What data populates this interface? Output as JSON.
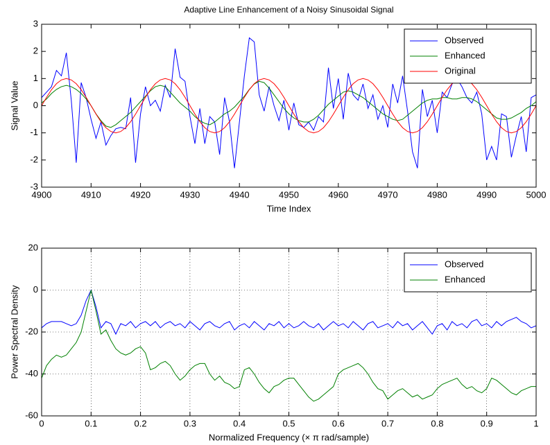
{
  "chart_data": [
    {
      "type": "line",
      "title": "Adaptive Line Enhancement of a Noisy Sinusoidal Signal",
      "xlabel": "Time Index",
      "ylabel": "Signal Value",
      "x": [
        4900,
        4901,
        4902,
        4903,
        4904,
        4905,
        4906,
        4907,
        4908,
        4909,
        4910,
        4911,
        4912,
        4913,
        4914,
        4915,
        4916,
        4917,
        4918,
        4919,
        4920,
        4921,
        4922,
        4923,
        4924,
        4925,
        4926,
        4927,
        4928,
        4929,
        4930,
        4931,
        4932,
        4933,
        4934,
        4935,
        4936,
        4937,
        4938,
        4939,
        4940,
        4941,
        4942,
        4943,
        4944,
        4945,
        4946,
        4947,
        4948,
        4949,
        4950,
        4951,
        4952,
        4953,
        4954,
        4955,
        4956,
        4957,
        4958,
        4959,
        4960,
        4961,
        4962,
        4963,
        4964,
        4965,
        4966,
        4967,
        4968,
        4969,
        4970,
        4971,
        4972,
        4973,
        4974,
        4975,
        4976,
        4977,
        4978,
        4979,
        4980,
        4981,
        4982,
        4983,
        4984,
        4985,
        4986,
        4987,
        4988,
        4989,
        4990,
        4991,
        4992,
        4993,
        4994,
        4995,
        4996,
        4997,
        4998,
        4999,
        5000
      ],
      "series": [
        {
          "name": "Observed",
          "color": "#0000ff",
          "values": [
            0.3,
            0.5,
            0.7,
            1.3,
            1.1,
            1.95,
            0.2,
            -2.1,
            0.85,
            0.3,
            -0.5,
            -1.2,
            -0.6,
            -1.45,
            -1.1,
            -0.85,
            -0.8,
            -0.85,
            0.3,
            -2.1,
            -0.3,
            0.7,
            0,
            0.2,
            -0.2,
            0.75,
            0.3,
            2.1,
            1.05,
            0.9,
            -0.4,
            -1.4,
            -0.1,
            -1.4,
            -0.4,
            -0.6,
            -1.8,
            0.3,
            -0.6,
            -2.3,
            -0.6,
            1.1,
            2.5,
            2.35,
            0.4,
            -0.2,
            0.7,
            0,
            -0.55,
            0.2,
            -0.9,
            0.1,
            -0.7,
            -0.8,
            -0.6,
            -0.9,
            -0.4,
            -0.6,
            1.4,
            -0.1,
            1.0,
            -0.5,
            1.2,
            0.4,
            0.2,
            0.8,
            -0.1,
            0.4,
            -0.5,
            0,
            -0.8,
            0.8,
            0.1,
            1.1,
            -0.2,
            -1.7,
            -2.3,
            0.6,
            -0.4,
            0.2,
            -1.0,
            0.5,
            0.3,
            0.8,
            1.0,
            0.7,
            0.3,
            0.1,
            0.5,
            -0.3,
            -2.0,
            -1.5,
            -2.0,
            -0.3,
            -0.4,
            -1.9,
            -1.1,
            -0.4,
            -1.7,
            0.3,
            0.4
          ]
        },
        {
          "name": "Enhanced",
          "color": "#008000",
          "values": [
            0.1,
            0.25,
            0.45,
            0.6,
            0.7,
            0.75,
            0.7,
            0.6,
            0.45,
            0.25,
            0,
            -0.3,
            -0.55,
            -0.75,
            -0.8,
            -0.7,
            -0.55,
            -0.4,
            -0.25,
            -0.05,
            0.15,
            0.35,
            0.55,
            0.7,
            0.75,
            0.7,
            0.5,
            0.3,
            0.1,
            -0.05,
            -0.2,
            -0.4,
            -0.55,
            -0.65,
            -0.7,
            -0.6,
            -0.45,
            -0.3,
            -0.2,
            -0.05,
            0.15,
            0.35,
            0.6,
            0.8,
            0.9,
            0.85,
            0.65,
            0.4,
            0.15,
            -0.1,
            -0.3,
            -0.45,
            -0.55,
            -0.6,
            -0.6,
            -0.5,
            -0.35,
            -0.15,
            0.05,
            0.2,
            0.35,
            0.5,
            0.55,
            0.5,
            0.4,
            0.3,
            0.15,
            0,
            -0.15,
            -0.3,
            -0.4,
            -0.5,
            -0.55,
            -0.5,
            -0.35,
            -0.2,
            -0.05,
            0.1,
            0.2,
            0.25,
            0.25,
            0.3,
            0.3,
            0.25,
            0.25,
            0.3,
            0.3,
            0.25,
            0.15,
            0,
            -0.15,
            -0.3,
            -0.45,
            -0.5,
            -0.5,
            -0.45,
            -0.35,
            -0.25,
            -0.1,
            0,
            0.15
          ]
        },
        {
          "name": "Original",
          "color": "#ff0000",
          "values": [
            0,
            0.31,
            0.59,
            0.81,
            0.95,
            1,
            0.95,
            0.81,
            0.59,
            0.31,
            0,
            -0.31,
            -0.59,
            -0.81,
            -0.95,
            -1,
            -0.95,
            -0.81,
            -0.59,
            -0.31,
            0,
            0.31,
            0.59,
            0.81,
            0.95,
            1,
            0.95,
            0.81,
            0.59,
            0.31,
            0,
            -0.31,
            -0.59,
            -0.81,
            -0.95,
            -1,
            -0.95,
            -0.81,
            -0.59,
            -0.31,
            0,
            0.31,
            0.59,
            0.81,
            0.95,
            1,
            0.95,
            0.81,
            0.59,
            0.31,
            0,
            -0.31,
            -0.59,
            -0.81,
            -0.95,
            -1,
            -0.95,
            -0.81,
            -0.59,
            -0.31,
            0,
            0.31,
            0.59,
            0.81,
            0.95,
            1,
            0.95,
            0.81,
            0.59,
            0.31,
            0,
            -0.31,
            -0.59,
            -0.81,
            -0.95,
            -1,
            -0.95,
            -0.81,
            -0.59,
            -0.31,
            0,
            0.31,
            0.59,
            0.81,
            0.95,
            1,
            0.95,
            0.81,
            0.59,
            0.31,
            0,
            -0.31,
            -0.59,
            -0.81,
            -0.95,
            -1,
            -0.95,
            -0.81,
            -0.59,
            -0.31,
            0
          ]
        }
      ],
      "xlim": [
        4900,
        5000
      ],
      "ylim": [
        -3,
        3
      ],
      "xticks": [
        4900,
        4910,
        4920,
        4930,
        4940,
        4950,
        4960,
        4970,
        4980,
        4990,
        5000
      ],
      "yticks": [
        -3,
        -2,
        -1,
        0,
        1,
        2,
        3
      ],
      "grid": false,
      "legend": "upper right"
    },
    {
      "type": "line",
      "xlabel": "Normalized Frequency (× π rad/sample)",
      "ylabel": "Power Spectral Density",
      "x": [
        0,
        0.01,
        0.02,
        0.03,
        0.04,
        0.05,
        0.06,
        0.07,
        0.08,
        0.09,
        0.1,
        0.11,
        0.12,
        0.13,
        0.14,
        0.15,
        0.16,
        0.17,
        0.18,
        0.19,
        0.2,
        0.21,
        0.22,
        0.23,
        0.24,
        0.25,
        0.26,
        0.27,
        0.28,
        0.29,
        0.3,
        0.31,
        0.32,
        0.33,
        0.34,
        0.35,
        0.36,
        0.37,
        0.38,
        0.39,
        0.4,
        0.41,
        0.42,
        0.43,
        0.44,
        0.45,
        0.46,
        0.47,
        0.48,
        0.49,
        0.5,
        0.51,
        0.52,
        0.53,
        0.54,
        0.55,
        0.56,
        0.57,
        0.58,
        0.59,
        0.6,
        0.61,
        0.62,
        0.63,
        0.64,
        0.65,
        0.66,
        0.67,
        0.68,
        0.69,
        0.7,
        0.71,
        0.72,
        0.73,
        0.74,
        0.75,
        0.76,
        0.77,
        0.78,
        0.79,
        0.8,
        0.81,
        0.82,
        0.83,
        0.84,
        0.85,
        0.86,
        0.87,
        0.88,
        0.89,
        0.9,
        0.91,
        0.92,
        0.93,
        0.94,
        0.95,
        0.96,
        0.97,
        0.98,
        0.99,
        1
      ],
      "series": [
        {
          "name": "Observed",
          "color": "#0000ff",
          "values": [
            -18,
            -16,
            -15,
            -15,
            -15,
            -16,
            -17,
            -16,
            -12,
            -5,
            0,
            -8,
            -18,
            -15,
            -16,
            -21,
            -16,
            -17,
            -15,
            -18,
            -16,
            -15,
            -17,
            -15,
            -18,
            -16,
            -15,
            -17,
            -16,
            -18,
            -15,
            -17,
            -19,
            -16,
            -15,
            -17,
            -18,
            -16,
            -15,
            -19,
            -17,
            -16,
            -18,
            -15,
            -17,
            -19,
            -16,
            -17,
            -15,
            -18,
            -16,
            -18,
            -17,
            -15,
            -17,
            -18,
            -16,
            -19,
            -17,
            -15,
            -17,
            -16,
            -18,
            -15,
            -17,
            -19,
            -16,
            -15,
            -18,
            -17,
            -16,
            -18,
            -15,
            -17,
            -16,
            -19,
            -17,
            -15,
            -18,
            -21,
            -17,
            -16,
            -19,
            -15,
            -17,
            -16,
            -18,
            -15,
            -14,
            -17,
            -16,
            -18,
            -15,
            -17,
            -15,
            -14,
            -13,
            -15,
            -16,
            -18,
            -17
          ]
        },
        {
          "name": "Enhanced",
          "color": "#008000",
          "values": [
            -42,
            -36,
            -33,
            -31,
            -32,
            -31,
            -28,
            -25,
            -20,
            -10,
            0,
            -10,
            -21,
            -19,
            -24,
            -28,
            -30,
            -31,
            -30,
            -28,
            -27,
            -30,
            -38,
            -37,
            -35,
            -34,
            -36,
            -40,
            -43,
            -41,
            -38,
            -36,
            -35,
            -35,
            -40,
            -43,
            -41,
            -44,
            -45,
            -47,
            -46,
            -38,
            -37,
            -40,
            -44,
            -47,
            -49,
            -46,
            -45,
            -43,
            -42,
            -42,
            -45,
            -48,
            -51,
            -53,
            -52,
            -50,
            -48,
            -46,
            -40,
            -38,
            -37,
            -36,
            -35,
            -37,
            -40,
            -44,
            -47,
            -48,
            -52,
            -50,
            -48,
            -47,
            -49,
            -51,
            -50,
            -52,
            -51,
            -50,
            -47,
            -45,
            -44,
            -43,
            -42,
            -45,
            -47,
            -46,
            -48,
            -49,
            -47,
            -42,
            -43,
            -45,
            -47,
            -49,
            -50,
            -48,
            -47,
            -46,
            -46
          ]
        }
      ],
      "xlim": [
        0,
        1
      ],
      "ylim": [
        -60,
        20
      ],
      "xticks": [
        0,
        0.1,
        0.2,
        0.3,
        0.4,
        0.5,
        0.6,
        0.7,
        0.8,
        0.9,
        1
      ],
      "yticks": [
        -60,
        -40,
        -20,
        0,
        20
      ],
      "grid": true,
      "legend": "upper right"
    }
  ]
}
